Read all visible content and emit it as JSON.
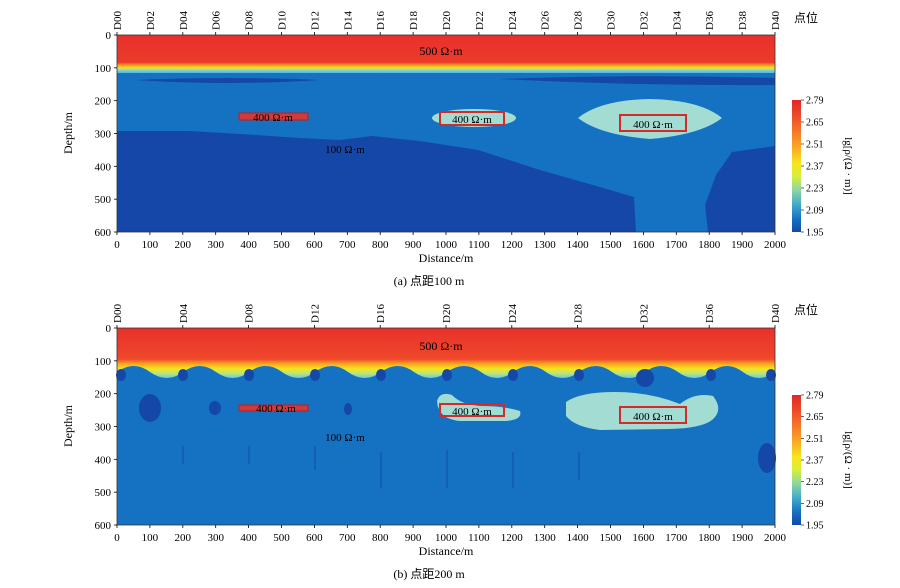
{
  "panels": [
    {
      "caption": "(a) 点距100 m",
      "station_labels": [
        "D00",
        "D02",
        "D04",
        "D06",
        "D08",
        "D10",
        "D12",
        "D14",
        "D16",
        "D18",
        "D20",
        "D22",
        "D24",
        "D26",
        "D28",
        "D30",
        "D32",
        "D34",
        "D36",
        "D38",
        "D40"
      ],
      "station_axis_title": "点位",
      "colorbar_title": "lg[ρ/(Ω · m)]",
      "annotations": [
        "500 Ω·m",
        "400 Ω·m",
        "400 Ω·m",
        "400 Ω·m",
        "100 Ω·m"
      ]
    },
    {
      "caption": "(b) 点距200 m",
      "station_labels": [
        "D00",
        "D04",
        "D08",
        "D12",
        "D16",
        "D20",
        "D24",
        "D28",
        "D32",
        "D36",
        "D40"
      ],
      "station_axis_title": "点位",
      "colorbar_title": "lg[ρ/(Ω · m)]",
      "annotations": [
        "500 Ω·m",
        "400 Ω·m",
        "400 Ω·m",
        "400 Ω·m",
        "100 Ω·m"
      ]
    }
  ],
  "chart_data": [
    {
      "type": "heatmap",
      "title": "(a) 点距100 m",
      "xlabel": "Distance/m",
      "ylabel": "Depth/m",
      "xlim": [
        0,
        2000
      ],
      "ylim": [
        600,
        0
      ],
      "x_ticks": [
        0,
        100,
        200,
        300,
        400,
        500,
        600,
        700,
        800,
        900,
        1000,
        1100,
        1200,
        1300,
        1400,
        1500,
        1600,
        1700,
        1800,
        1900,
        2000
      ],
      "y_ticks": [
        0,
        100,
        200,
        300,
        400,
        500,
        600
      ],
      "colorbar": {
        "label": "lg[ρ/(Ω · m)]",
        "ticks": [
          1.95,
          2.09,
          2.23,
          2.37,
          2.51,
          2.65,
          2.79
        ]
      },
      "model_blocks": [
        {
          "label": "500 Ω·m",
          "x_range": [
            0,
            2000
          ],
          "depth_range": [
            0,
            100
          ]
        },
        {
          "label": "400 Ω·m",
          "x_range": [
            370,
            580
          ],
          "depth_range": [
            240,
            260
          ]
        },
        {
          "label": "400 Ω·m",
          "x_range": [
            980,
            1180
          ],
          "depth_range": [
            235,
            275
          ]
        },
        {
          "label": "400 Ω·m",
          "x_range": [
            1530,
            1730
          ],
          "depth_range": [
            245,
            295
          ]
        },
        {
          "label": "100 Ω·m",
          "background": true
        }
      ]
    },
    {
      "type": "heatmap",
      "title": "(b) 点距200 m",
      "xlabel": "Distance/m",
      "ylabel": "Depth/m",
      "xlim": [
        0,
        2000
      ],
      "ylim": [
        600,
        0
      ],
      "x_ticks": [
        0,
        100,
        200,
        300,
        400,
        500,
        600,
        700,
        800,
        900,
        1000,
        1100,
        1200,
        1300,
        1400,
        1500,
        1600,
        1700,
        1800,
        1900,
        2000
      ],
      "y_ticks": [
        0,
        100,
        200,
        300,
        400,
        500,
        600
      ],
      "colorbar": {
        "label": "lg[ρ/(Ω · m)]",
        "ticks": [
          1.95,
          2.09,
          2.23,
          2.37,
          2.51,
          2.65,
          2.79
        ]
      },
      "model_blocks": [
        {
          "label": "500 Ω·m",
          "x_range": [
            0,
            2000
          ],
          "depth_range": [
            0,
            100
          ]
        },
        {
          "label": "400 Ω·m",
          "x_range": [
            370,
            580
          ],
          "depth_range": [
            230,
            255
          ]
        },
        {
          "label": "400 Ω·m",
          "x_range": [
            980,
            1180
          ],
          "depth_range": [
            235,
            270
          ]
        },
        {
          "label": "400 Ω·m",
          "x_range": [
            1530,
            1730
          ],
          "depth_range": [
            245,
            290
          ]
        },
        {
          "label": "100 Ω·m",
          "background": true
        }
      ]
    }
  ],
  "colors": {
    "background_blue": "#1572c2",
    "deep_blue": "#1447a8",
    "light_cyan": "#a3dcd2",
    "layer_red": "#e8302b",
    "yellow": "#f2e51c",
    "box_red": "#d52a2a"
  }
}
